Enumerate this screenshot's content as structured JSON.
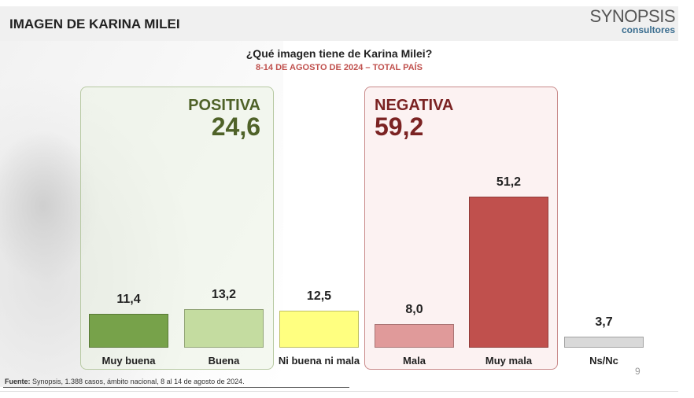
{
  "header": {
    "title": "IMAGEN DE KARINA MILEI",
    "logo_line1": "SYNOPSIS",
    "logo_line2": "consultores"
  },
  "question": "¿Qué imagen tiene de Karina Milei?",
  "subtitle": "8-14 DE AGOSTO DE 2024 – TOTAL PAÍS",
  "groups": {
    "positive": {
      "label": "POSITIVA",
      "value": "24,6"
    },
    "negative": {
      "label": "NEGATIVA",
      "value": "59,2"
    }
  },
  "footer": {
    "source_label": "Fuente:",
    "source_text": " Synopsis, 1.388 casos, ámbito nacional, 8 al 14 de agosto de 2024.",
    "page": "9"
  },
  "chart_data": {
    "type": "bar",
    "title": "¿Qué imagen tiene de Karina Milei?",
    "categories": [
      "Muy buena",
      "Buena",
      "Ni buena ni mala",
      "Mala",
      "Muy mala",
      "Ns/Nc"
    ],
    "values": [
      11.4,
      13.2,
      12.5,
      8.0,
      51.2,
      3.7
    ],
    "value_labels": [
      "11,4",
      "13,2",
      "12,5",
      "8,0",
      "51,2",
      "3,7"
    ],
    "colors": [
      "#77a24a",
      "#c4dca0",
      "#ffff80",
      "#e09a9a",
      "#c0504d",
      "#d9d9d9"
    ],
    "ylim": [
      0,
      60
    ],
    "grid": false
  }
}
